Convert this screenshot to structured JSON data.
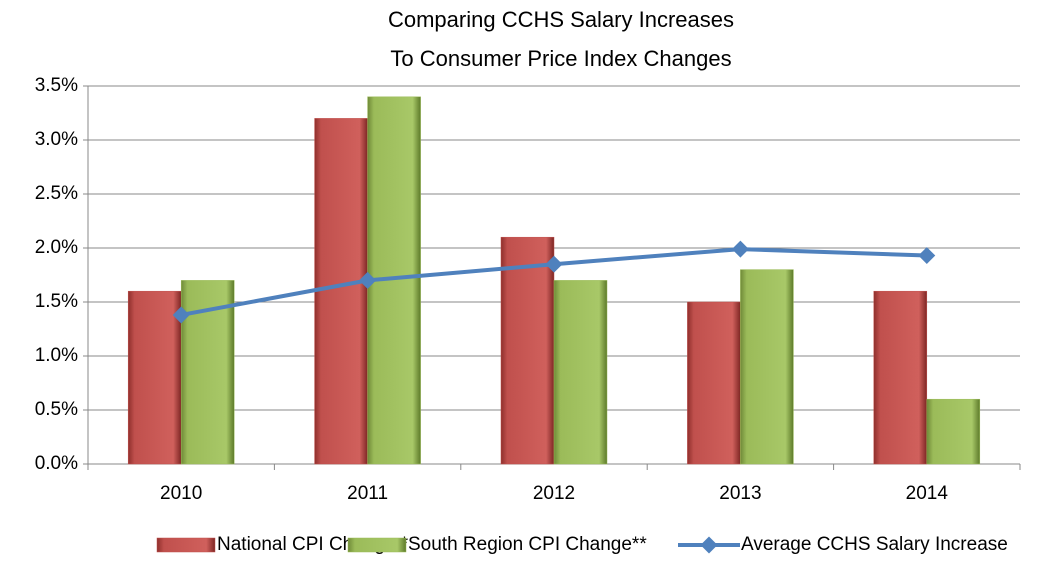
{
  "chart_data": {
    "type": "bar",
    "title": [
      "Comparing CCHS Salary Increases",
      "To Consumer Price Index Changes"
    ],
    "categories": [
      "2010",
      "2011",
      "2012",
      "2013",
      "2014"
    ],
    "series": [
      {
        "name": "National CPI Change *",
        "color": "#c0504d",
        "values": [
          1.6,
          3.2,
          2.1,
          1.5,
          1.6
        ]
      },
      {
        "name": "South Region CPI Change**",
        "color": "#9bbb59",
        "values": [
          1.7,
          3.4,
          1.7,
          1.8,
          0.6
        ]
      },
      {
        "name": "Average CCHS Salary Increase",
        "color": "#4f81bd",
        "type": "line",
        "values": [
          1.38,
          1.7,
          1.85,
          1.99,
          1.93
        ]
      }
    ],
    "ylim": [
      0,
      3.5
    ],
    "yticks": [
      {
        "value": 0,
        "label": "0.0%"
      },
      {
        "value": 0.5,
        "label": "0.5%"
      },
      {
        "value": 1,
        "label": "1.0%"
      },
      {
        "value": 1.5,
        "label": "1.5%"
      },
      {
        "value": 2,
        "label": "2.0%"
      },
      {
        "value": 2.5,
        "label": "2.5%"
      },
      {
        "value": 3,
        "label": "3.0%"
      },
      {
        "value": 3.5,
        "label": "3.5%"
      }
    ],
    "grid": true,
    "legend": "bottom"
  }
}
